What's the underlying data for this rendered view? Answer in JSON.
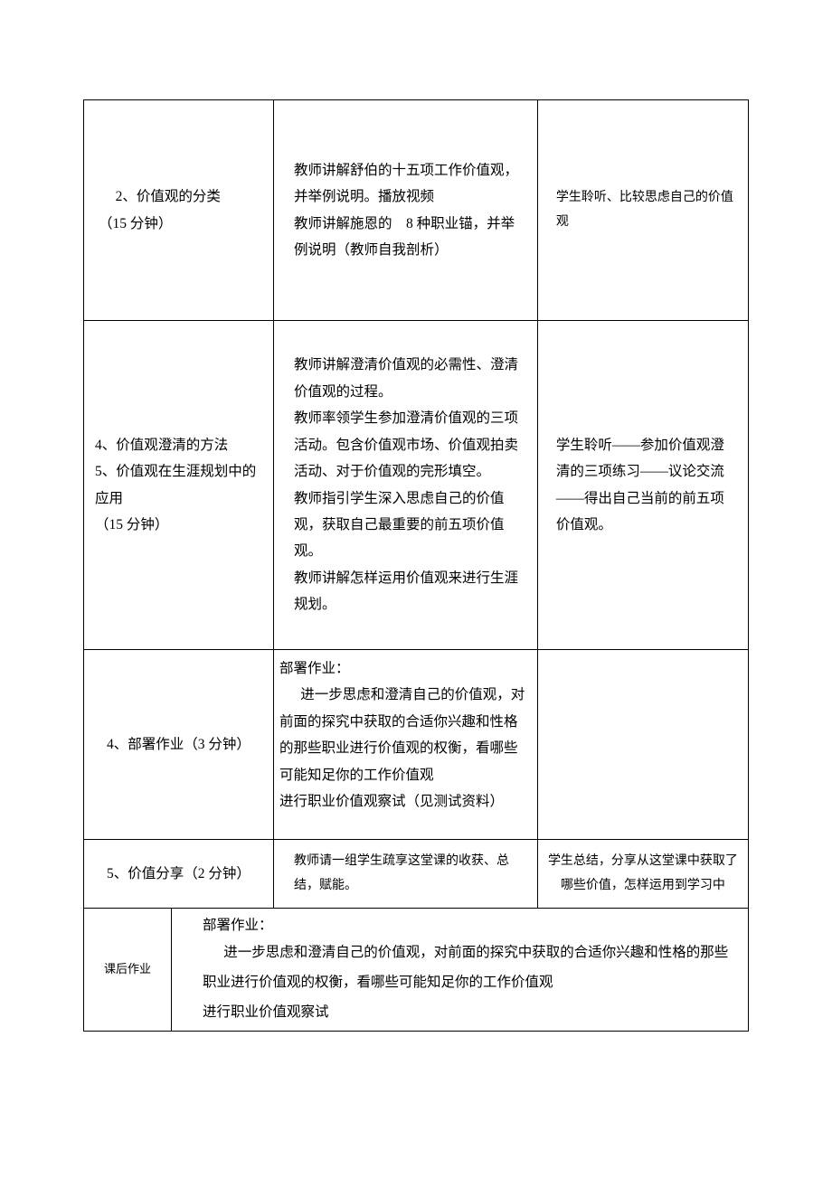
{
  "rows": [
    {
      "c1": "2、价值观的分类\n（15 分钟）",
      "c2": "教师讲解舒伯的十五项工作价值观，并举例说明。播放视频\n教师讲解施恩的　8 种职业锚，并举例说明（教师自我剖析）",
      "c3": "学生聆听、比较思虑自己的价值观"
    },
    {
      "c1": "4、价值观澄清的方法\n5、价值观在生涯规划中的应用\n（15 分钟）",
      "c2": "教师讲解澄清价值观的必需性、澄清价值观的过程。\n教师率领学生参加澄清价值观的三项活动。包含价值观市场、价值观拍卖活动、对于价值观的完形填空。\n教师指引学生深入思虑自己的价值观，获取自己最重要的前五项价值观。\n教师讲解怎样运用价值观来进行生涯规划。",
      "c3": "学生聆听——参加价值观澄清的三项练习——议论交流——得出自己当前的前五项价值观。"
    },
    {
      "c1": "4、部署作业（3 分钟）",
      "c2_head": "部署作业：",
      "c2_body": "进一步思虑和澄清自己的价值观，对前面的探究中获取的合适你兴趣和性格的那些职业进行价值观的权衡，看哪些可能知足你的工作价值观\n进行职业价值观察试（见测试资料）",
      "c3": ""
    },
    {
      "c1": "5、价值分享（2 分钟）",
      "c2": "教师请一组学生疏享这堂课的收获、总结，赋能。",
      "c3": "学生总结，分享从这堂课中获取了哪些价值，怎样运用到学习中"
    }
  ],
  "footer": {
    "label": "课后作业",
    "head": "部署作业：",
    "body": "进一步思虑和澄清自己的价值观，对前面的探究中获取的合适你兴趣和性格的那些职业进行价值观的权衡，看哪些可能知足你的工作价值观\n进行职业价值观察试"
  },
  "colors": {
    "border": "#000000",
    "text": "#000000",
    "background": "#ffffff"
  }
}
